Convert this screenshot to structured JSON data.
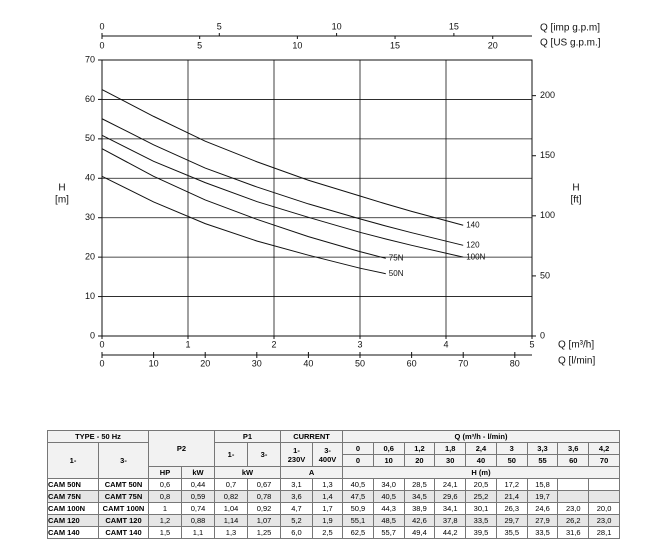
{
  "chart_data": {
    "type": "line",
    "x": [
      0,
      0.6,
      1.2,
      1.8,
      2.4,
      3,
      3.3,
      3.6,
      4.2
    ],
    "xlim": [
      0,
      5
    ],
    "xticks": [
      0,
      1,
      2,
      3,
      4,
      5
    ],
    "xlabel": "Q [m³/h]",
    "x2lim": [
      0,
      83.33
    ],
    "x2ticks": [
      0,
      10,
      20,
      30,
      40,
      50,
      60,
      70,
      80
    ],
    "x2label": "Q [l/min]",
    "x3lim": [
      0,
      18.33
    ],
    "x3ticks": [
      0,
      5,
      10,
      15
    ],
    "x3label": "Q [imp g.p.m]",
    "x4lim": [
      0,
      22.01
    ],
    "x4ticks": [
      0,
      5,
      10,
      15,
      20
    ],
    "x4label": "Q [US g.p.m.]",
    "ylim": [
      0,
      70
    ],
    "yticks": [
      0,
      10,
      20,
      30,
      40,
      50,
      60,
      70
    ],
    "ylabel": [
      "H",
      "[m]"
    ],
    "y2lim": [
      0,
      229.66
    ],
    "y2ticks": [
      0,
      50,
      100,
      150,
      200
    ],
    "y2label": [
      "H",
      "[ft]"
    ],
    "grid": true,
    "color": "#111111",
    "series": [
      {
        "name": "140",
        "values": [
          62.5,
          55.7,
          49.4,
          44.2,
          39.5,
          35.5,
          33.5,
          31.6,
          28.1
        ]
      },
      {
        "name": "120",
        "values": [
          55.1,
          48.5,
          42.6,
          37.8,
          33.5,
          29.7,
          27.9,
          26.2,
          23.0
        ]
      },
      {
        "name": "100N",
        "values": [
          50.9,
          44.3,
          38.9,
          34.1,
          30.1,
          26.3,
          24.6,
          23.0,
          20.0
        ]
      },
      {
        "name": "75N",
        "values": [
          47.5,
          40.5,
          34.5,
          29.6,
          25.2,
          21.4,
          19.7,
          null,
          null
        ]
      },
      {
        "name": "50N",
        "values": [
          40.5,
          34.0,
          28.5,
          24.1,
          20.5,
          17.2,
          15.8,
          null,
          null
        ]
      }
    ]
  },
  "table": {
    "type_header": "TYPE - 50 Hz",
    "p2": "P2",
    "p1": "P1",
    "current": "CURRENT",
    "q_header": "Q (m³/h - l/min)",
    "type_1ph": "1-",
    "type_3ph": "3-",
    "p1_1ph": "1-",
    "p1_3ph": "3-",
    "current_1ph": [
      "1-",
      "230V"
    ],
    "current_3ph": [
      "3-",
      "400V"
    ],
    "q_m3h": [
      "0",
      "0,6",
      "1,2",
      "1,8",
      "2,4",
      "3",
      "3,3",
      "3,6",
      "4,2"
    ],
    "q_lmin": [
      "0",
      "10",
      "20",
      "30",
      "40",
      "50",
      "55",
      "60",
      "70"
    ],
    "p2_hp": "HP",
    "p2_kw": "kW",
    "p1_unit": "kW",
    "current_unit": "A",
    "h_header": "H (m)",
    "rows": [
      [
        "CAM 50N",
        "CAMT 50N",
        "0,6",
        "0,44",
        "0,7",
        "0,67",
        "3,1",
        "1,3",
        "40,5",
        "34,0",
        "28,5",
        "24,1",
        "20,5",
        "17,2",
        "15,8",
        null,
        null
      ],
      [
        "CAM 75N",
        "CAMT 75N",
        "0,8",
        "0,59",
        "0,82",
        "0,78",
        "3,6",
        "1,4",
        "47,5",
        "40,5",
        "34,5",
        "29,6",
        "25,2",
        "21,4",
        "19,7",
        null,
        null
      ],
      [
        "CAM 100N",
        "CAMT 100N",
        "1",
        "0,74",
        "1,04",
        "0,92",
        "4,7",
        "1,7",
        "50,9",
        "44,3",
        "38,9",
        "34,1",
        "30,1",
        "26,3",
        "24,6",
        "23,0",
        "20,0"
      ],
      [
        "CAM 120",
        "CAMT 120",
        "1,2",
        "0,88",
        "1,14",
        "1,07",
        "5,2",
        "1,9",
        "55,1",
        "48,5",
        "42,6",
        "37,8",
        "33,5",
        "29,7",
        "27,9",
        "26,2",
        "23,0"
      ],
      [
        "CAM 140",
        "CAMT 140",
        "1,5",
        "1,1",
        "1,3",
        "1,25",
        "6,0",
        "2,5",
        "62,5",
        "55,7",
        "49,4",
        "44,2",
        "39,5",
        "35,5",
        "33,5",
        "31,6",
        "28,1"
      ]
    ]
  }
}
